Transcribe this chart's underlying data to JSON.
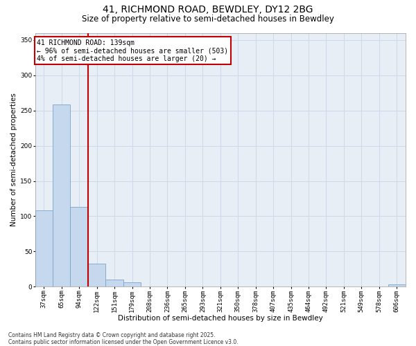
{
  "title1": "41, RICHMOND ROAD, BEWDLEY, DY12 2BG",
  "title2": "Size of property relative to semi-detached houses in Bewdley",
  "xlabel": "Distribution of semi-detached houses by size in Bewdley",
  "ylabel": "Number of semi-detached properties",
  "categories": [
    "37sqm",
    "65sqm",
    "94sqm",
    "122sqm",
    "151sqm",
    "179sqm",
    "208sqm",
    "236sqm",
    "265sqm",
    "293sqm",
    "321sqm",
    "350sqm",
    "378sqm",
    "407sqm",
    "435sqm",
    "464sqm",
    "492sqm",
    "521sqm",
    "549sqm",
    "578sqm",
    "606sqm"
  ],
  "values": [
    108,
    258,
    113,
    33,
    10,
    6,
    0,
    0,
    0,
    0,
    0,
    0,
    0,
    0,
    0,
    0,
    0,
    0,
    0,
    0,
    3
  ],
  "bar_color": "#c5d8ee",
  "bar_edge_color": "#7aa3c8",
  "vline_x_index": 3,
  "vline_color": "#c00000",
  "annotation_text": "41 RICHMOND ROAD: 139sqm\n← 96% of semi-detached houses are smaller (503)\n4% of semi-detached houses are larger (20) →",
  "annotation_box_color": "#c00000",
  "ylim": [
    0,
    360
  ],
  "yticks": [
    0,
    50,
    100,
    150,
    200,
    250,
    300,
    350
  ],
  "grid_color": "#cdd8e8",
  "background_color": "#e8eef5",
  "footnote": "Contains HM Land Registry data © Crown copyright and database right 2025.\nContains public sector information licensed under the Open Government Licence v3.0.",
  "title_fontsize": 10,
  "subtitle_fontsize": 8.5,
  "axis_label_fontsize": 7.5,
  "tick_fontsize": 6.5,
  "annot_fontsize": 7,
  "footnote_fontsize": 5.5
}
